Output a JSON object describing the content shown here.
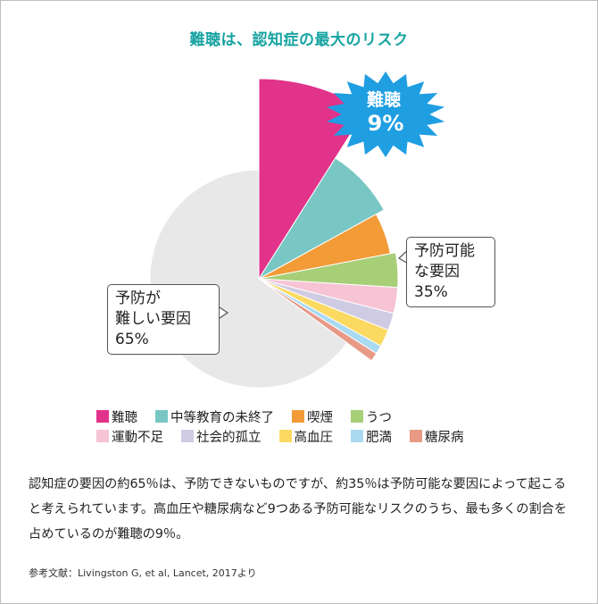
{
  "title": "難聴は、認知症の最大のリスク",
  "chart_data": {
    "type": "pie",
    "title": "難聴は、認知症の最大のリスク",
    "groups": [
      {
        "label": "予防が\n難しい要因\n65%",
        "value": 65,
        "color": "#e8e8e8"
      },
      {
        "label": "予防可能\nな要因\n35%",
        "value": 35
      }
    ],
    "slices": [
      {
        "name": "難聴",
        "value": 9,
        "color": "#e2338a"
      },
      {
        "name": "中等教育の未終了",
        "value": 8,
        "color": "#78c7c4"
      },
      {
        "name": "喫煙",
        "value": 5,
        "color": "#f29b37"
      },
      {
        "name": "うつ",
        "value": 4,
        "color": "#a7cf78"
      },
      {
        "name": "運動不足",
        "value": 3,
        "color": "#f6c4d4"
      },
      {
        "name": "社会的孤立",
        "value": 2,
        "color": "#cfcbe3"
      },
      {
        "name": "高血圧",
        "value": 2,
        "color": "#fcd961"
      },
      {
        "name": "肥満",
        "value": 1,
        "color": "#aad9f2"
      },
      {
        "name": "糖尿病",
        "value": 1,
        "color": "#e89a87"
      }
    ],
    "burst_label": [
      "難聴",
      "9%"
    ],
    "burst_color": "#1f9ee2"
  },
  "legend_rows": [
    [
      "難聴",
      "中等教育の未終了",
      "喫煙",
      "うつ"
    ],
    [
      "運動不足",
      "社会的孤立",
      "高血圧",
      "肥満",
      "糖尿病"
    ]
  ],
  "callouts": {
    "preventable": [
      "予防可能",
      "な要因",
      "35%"
    ],
    "hard": [
      "予防が",
      "難しい要因",
      "65%"
    ]
  },
  "description": "認知症の要因の約65％は、予防できないものですが、約35％は予防可能な要因によって起こると考えられています。高血圧や糖尿病など9つある予防可能なリスクのうち、最も多くの割合を占めているのが難聴の9％。",
  "reference": "参考文献：Livingston G, et al, Lancet, 2017より"
}
